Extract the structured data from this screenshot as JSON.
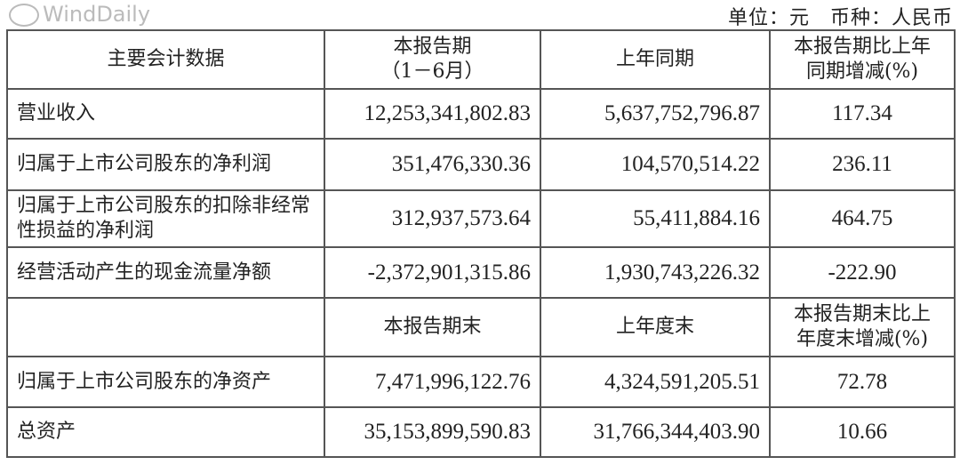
{
  "unit_note": "单位：元　币种：人民币",
  "header1": [
    "主要会计数据",
    "本报告期",
    "（1－6月）",
    "上年同期",
    "本报告期比上年",
    "同期增减(%)"
  ],
  "rows1": [
    {
      "label": "营业收入",
      "current": "12,253,341,802.83",
      "prior": "5,637,752,796.87",
      "change": "117.34"
    },
    {
      "label": "归属于上市公司股东的净利润",
      "current": "351,476,330.36",
      "prior": "104,570,514.22",
      "change": "236.11"
    },
    {
      "label": "归属于上市公司股东的扣除非经常性损益的净利润",
      "current": "312,937,573.64",
      "prior": "55,411,884.16",
      "change": "464.75"
    },
    {
      "label": "经营活动产生的现金流量净额",
      "current": "-2,372,901,315.86",
      "prior": "1,930,743,226.32",
      "change": "-222.90"
    }
  ],
  "header2": [
    "本报告期末",
    "上年度末",
    "本报告期末比上",
    "年度末增减(%)"
  ],
  "rows2": [
    {
      "label": "归属于上市公司股东的净资产",
      "current": "7,471,996,122.76",
      "prior": "4,324,591,205.51",
      "change": "72.78"
    },
    {
      "label": "总资产",
      "current": "35,153,899,590.83",
      "prior": "31,766,344,403.90",
      "change": "10.66"
    }
  ],
  "watermark": "WindDaily"
}
